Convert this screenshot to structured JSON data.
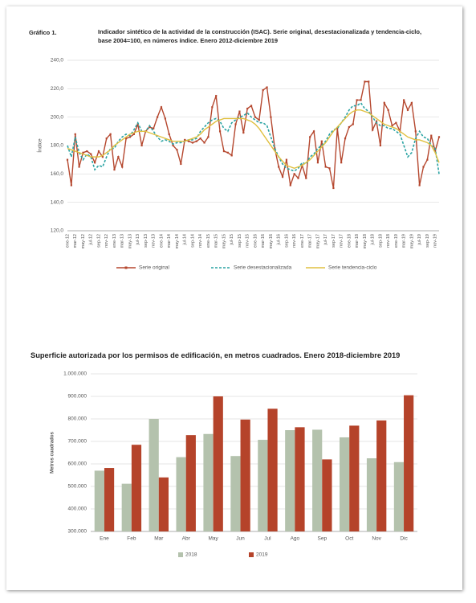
{
  "chart_data": [
    {
      "type": "line",
      "figure_label": "Gráfico 1.",
      "title": "Indicador sintético de la actividad de la construcción (ISAC). Serie original, desestacionalizada y tendencia-ciclo, base 2004=100, en números índice. Enero 2012-diciembre 2019",
      "y_label": "Índice",
      "categories": [
        "ene-12",
        null,
        "mar-12",
        null,
        "may-12",
        null,
        "jul-12",
        null,
        "sep-12",
        null,
        "nov-12",
        null,
        "ene-13",
        null,
        "mar-13",
        null,
        "may-13",
        null,
        "jul-13",
        null,
        "sep-13",
        null,
        "nov-13",
        null,
        "ene-14",
        null,
        "mar-14",
        null,
        "may-14",
        null,
        "jul-14",
        null,
        "sep-14",
        null,
        "nov-14",
        null,
        "ene-15",
        null,
        "mar-15",
        null,
        "may-15",
        null,
        "jul-15",
        null,
        "sep-15",
        null,
        "nov-15",
        null,
        "ene-16",
        null,
        "mar-16",
        null,
        "may-16",
        null,
        "jul-16",
        null,
        "sep-16",
        null,
        "nov-16",
        null,
        "ene-17",
        null,
        "mar-17",
        null,
        "may-17",
        null,
        "jul-17",
        null,
        "sep-17",
        null,
        "nov-17",
        null,
        "ene-18",
        null,
        "mar-18",
        null,
        "may-18",
        null,
        "jul-18",
        null,
        "sep-18",
        null,
        "nov-18",
        null,
        "ene-19",
        null,
        "mar-19",
        null,
        "may-19",
        null,
        "jul-19",
        null,
        "sep-19",
        null,
        "nov-19",
        null
      ],
      "series": [
        {
          "name": "Serie original",
          "color": "#b5472e",
          "style": "solid",
          "markers": true,
          "values": [
            170,
            152,
            188,
            165,
            175,
            176,
            174,
            168,
            176,
            172,
            185,
            188,
            163,
            172,
            165,
            185,
            186,
            188,
            195,
            180,
            190,
            193,
            192,
            200,
            207,
            199,
            188,
            180,
            177,
            167,
            184,
            183,
            182,
            183,
            185,
            182,
            186,
            207,
            215,
            190,
            176,
            175,
            173,
            195,
            204,
            189,
            206,
            208,
            200,
            198,
            219,
            221,
            200,
            178,
            165,
            158,
            170,
            152,
            160,
            157,
            166,
            157,
            186,
            190,
            168,
            183,
            165,
            164,
            150,
            192,
            168,
            185,
            193,
            195,
            212,
            212,
            225,
            225,
            191,
            197,
            180,
            210,
            205,
            194,
            196,
            190,
            212,
            205,
            210,
            190,
            152,
            165,
            170,
            187,
            176,
            186
          ]
        },
        {
          "name": "Serie desestacionalizada",
          "color": "#2aa3a3",
          "style": "dashed",
          "markers": false,
          "values": [
            180,
            172,
            186,
            175,
            170,
            174,
            172,
            163,
            166,
            165,
            172,
            178,
            178,
            183,
            186,
            188,
            187,
            191,
            196,
            190,
            190,
            194,
            190,
            186,
            183,
            184,
            183,
            181,
            182,
            182,
            183,
            184,
            184,
            185,
            190,
            193,
            196,
            198,
            199,
            197,
            192,
            190,
            196,
            198,
            200,
            201,
            203,
            200,
            198,
            196,
            196,
            194,
            186,
            178,
            172,
            167,
            164,
            163,
            162,
            164,
            168,
            167,
            172,
            174,
            178,
            180,
            183,
            188,
            191,
            192,
            196,
            200,
            205,
            208,
            208,
            210,
            206,
            204,
            200,
            196,
            194,
            194,
            192,
            192,
            190,
            188,
            180,
            172,
            175,
            185,
            190,
            186,
            185,
            180,
            178,
            160
          ]
        },
        {
          "name": "Serie tendencia-ciclo",
          "color": "#e0c040",
          "style": "solid",
          "markers": false,
          "values": [
            178,
            177,
            176,
            175,
            174,
            173,
            172,
            172,
            172,
            173,
            175,
            177,
            180,
            182,
            184,
            186,
            188,
            189,
            190,
            190,
            190,
            189,
            188,
            187,
            186,
            185,
            184,
            183,
            183,
            183,
            183,
            184,
            185,
            186,
            188,
            191,
            193,
            195,
            197,
            198,
            199,
            199,
            199,
            199,
            199,
            199,
            198,
            197,
            195,
            192,
            188,
            184,
            180,
            176,
            172,
            169,
            166,
            165,
            164,
            165,
            166,
            168,
            170,
            173,
            176,
            179,
            182,
            186,
            190,
            193,
            196,
            199,
            202,
            204,
            205,
            205,
            204,
            203,
            201,
            199,
            197,
            195,
            194,
            193,
            192,
            190,
            188,
            186,
            185,
            184,
            184,
            183,
            182,
            180,
            175,
            168
          ]
        }
      ],
      "ylim": [
        120,
        240
      ],
      "yticks": [
        {
          "value": 120,
          "label": "120,0"
        },
        {
          "value": 140,
          "label": "140,0"
        },
        {
          "value": 160,
          "label": "160,0"
        },
        {
          "value": 180,
          "label": "180,0"
        },
        {
          "value": 200,
          "label": "200,0"
        },
        {
          "value": 220,
          "label": "220,0"
        },
        {
          "value": 240,
          "label": "240,0"
        }
      ],
      "grid": true,
      "legend": "bottom"
    },
    {
      "type": "bar",
      "title": "Superficie autorizada por los permisos de edificación, en metros cuadrados. Enero 2018-diciembre 2019",
      "y_label": "Metros cuadrados",
      "categories": [
        "Ene",
        "Feb",
        "Mar",
        "Abr",
        "May",
        "Jun",
        "Jul",
        "Ago",
        "Sep",
        "Oct",
        "Nov",
        "Dic"
      ],
      "series": [
        {
          "name": "2018",
          "color": "#b4c2ad",
          "values": [
            570000,
            512000,
            800000,
            630000,
            733000,
            635000,
            707000,
            750000,
            752000,
            718000,
            625000,
            608000
          ]
        },
        {
          "name": "2019",
          "color": "#b5432a",
          "values": [
            582000,
            685000,
            540000,
            728000,
            900000,
            797000,
            845000,
            763000,
            620000,
            770000,
            793000,
            905000
          ]
        }
      ],
      "ylim": [
        300000,
        1000000
      ],
      "yticks": [
        {
          "value": 300000,
          "label": "300.000"
        },
        {
          "value": 400000,
          "label": "400.000"
        },
        {
          "value": 500000,
          "label": "500.000"
        },
        {
          "value": 600000,
          "label": "600.000"
        },
        {
          "value": 700000,
          "label": "700.000"
        },
        {
          "value": 800000,
          "label": "800.000"
        },
        {
          "value": 900000,
          "label": "900.000"
        },
        {
          "value": 1000000,
          "label": "1.000.000"
        }
      ],
      "grid": true,
      "legend": "bottom"
    }
  ]
}
